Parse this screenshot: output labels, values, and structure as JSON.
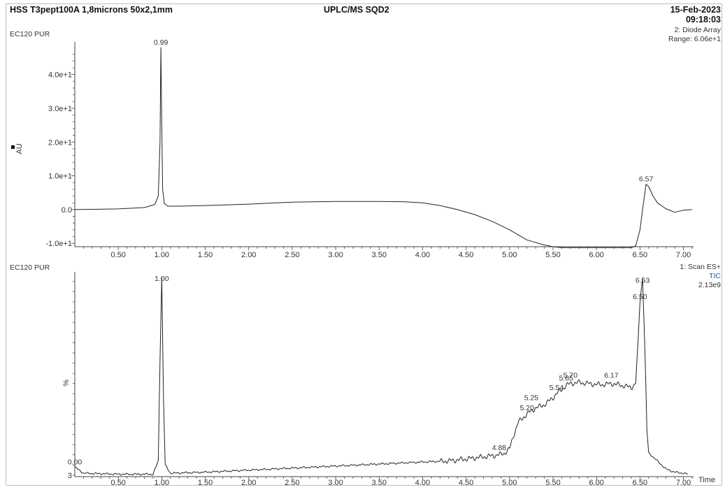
{
  "header": {
    "column": "HSS T3pept100A 1,8microns 50x2,1mm",
    "instrument": "UPLC/MS SQD2",
    "date": "15-Feb-2023",
    "time": "09:18:03"
  },
  "chart_data": [
    {
      "type": "line",
      "sample_label": "EC120 PUR",
      "detector": "2: Diode Array",
      "range_label": "Range: 6.06e+1",
      "ylabel": "AU",
      "xlim": [
        0.0,
        7.1
      ],
      "ylim": [
        -11.0,
        48.0
      ],
      "x_ticks": [
        "0.50",
        "1.00",
        "1.50",
        "2.00",
        "2.50",
        "3.00",
        "3.50",
        "4.00",
        "4.50",
        "5.00",
        "5.50",
        "6.00",
        "6.50",
        "7.00"
      ],
      "y_ticks": [
        {
          "value": 40,
          "label": "4.0e+1"
        },
        {
          "value": 30,
          "label": "3.0e+1"
        },
        {
          "value": 20,
          "label": "2.0e+1"
        },
        {
          "value": 10,
          "label": "1.0e+1"
        },
        {
          "value": 0,
          "label": "0.0"
        },
        {
          "value": -10,
          "label": "-1.0e+1"
        }
      ],
      "peak_labels": [
        {
          "x": 0.99,
          "y": 48.0,
          "label": "0.99"
        },
        {
          "x": 6.57,
          "y": 7.5,
          "label": "6.57"
        }
      ],
      "series": [
        {
          "x": [
            0.0,
            0.5,
            0.8,
            0.92,
            0.96,
            0.98,
            0.99,
            1.0,
            1.01,
            1.03,
            1.07,
            1.2,
            1.5,
            2.0,
            2.5,
            3.0,
            3.5,
            3.8,
            4.0,
            4.2,
            4.4,
            4.6,
            4.8,
            5.0,
            5.2,
            5.4,
            5.5,
            5.6,
            5.8,
            6.0,
            6.2,
            6.4,
            6.45,
            6.5,
            6.53,
            6.57,
            6.6,
            6.65,
            6.7,
            6.8,
            6.9,
            7.0,
            7.1
          ],
          "y": [
            0.0,
            0.2,
            0.6,
            1.5,
            4.0,
            20.0,
            48.0,
            25.0,
            6.0,
            1.8,
            1.0,
            1.0,
            1.2,
            1.6,
            2.2,
            2.4,
            2.4,
            2.3,
            2.0,
            1.2,
            0.0,
            -1.5,
            -3.5,
            -6.0,
            -9.0,
            -10.5,
            -11.0,
            -11.3,
            -11.3,
            -11.3,
            -11.3,
            -11.3,
            -10.8,
            -6.0,
            0.0,
            7.5,
            6.8,
            4.0,
            2.0,
            0.2,
            -0.8,
            -0.2,
            0.0
          ]
        }
      ]
    },
    {
      "type": "line",
      "sample_label": "EC120 PUR",
      "detector": "1: Scan ES+",
      "trace": "TIC",
      "range_label": "2.13e9",
      "ylabel": "%",
      "xlabel": "Time",
      "xlim": [
        0.0,
        7.1
      ],
      "ylim": [
        3,
        100
      ],
      "y_ticks": [
        {
          "value": 3,
          "label": "3"
        }
      ],
      "x_ticks": [
        "0.50",
        "1.00",
        "1.50",
        "2.00",
        "2.50",
        "3.00",
        "3.50",
        "4.00",
        "4.50",
        "5.00",
        "5.50",
        "6.00",
        "6.50",
        "7.00"
      ],
      "peak_labels": [
        {
          "x": 0.0,
          "y": 7.0,
          "label": "0.00"
        },
        {
          "x": 1.0,
          "y": 97.0,
          "label": "1.00"
        },
        {
          "x": 4.88,
          "y": 14.0,
          "label": "4.88"
        },
        {
          "x": 5.2,
          "y": 33.5,
          "label": "5.20"
        },
        {
          "x": 5.25,
          "y": 38.5,
          "label": "5.25"
        },
        {
          "x": 5.54,
          "y": 43.5,
          "label": "5.54"
        },
        {
          "x": 5.65,
          "y": 48.0,
          "label": "5.65"
        },
        {
          "x": 5.7,
          "y": 49.5,
          "label": "5.70"
        },
        {
          "x": 6.17,
          "y": 49.5,
          "label": "6.17"
        },
        {
          "x": 6.5,
          "y": 88.0,
          "label": "6.50"
        },
        {
          "x": 6.53,
          "y": 96.0,
          "label": "6.53"
        }
      ],
      "series": [
        {
          "x": [
            0.0,
            0.1,
            0.5,
            0.9,
            0.96,
            0.98,
            1.0,
            1.02,
            1.04,
            1.1,
            1.5,
            2.0,
            2.5,
            3.0,
            3.5,
            4.0,
            4.3,
            4.6,
            4.8,
            4.88,
            4.95,
            5.0,
            5.05,
            5.1,
            5.2,
            5.25,
            5.3,
            5.4,
            5.5,
            5.54,
            5.6,
            5.65,
            5.7,
            5.8,
            5.9,
            6.0,
            6.1,
            6.17,
            6.3,
            6.4,
            6.45,
            6.48,
            6.5,
            6.53,
            6.56,
            6.58,
            6.6,
            6.65,
            6.7,
            6.8,
            6.9,
            7.0,
            7.05
          ],
          "y": [
            7.0,
            4.0,
            3.5,
            3.5,
            10.0,
            60.0,
            100.0,
            40.0,
            8.0,
            4.0,
            4.5,
            5.5,
            6.5,
            7.5,
            8.5,
            9.5,
            10.0,
            11.5,
            12.5,
            13.0,
            14.0,
            16.0,
            23.0,
            29.0,
            33.0,
            34.5,
            36.0,
            37.5,
            41.0,
            43.0,
            45.0,
            47.0,
            48.0,
            48.5,
            48.0,
            47.5,
            47.5,
            48.0,
            47.0,
            46.0,
            48.0,
            70.0,
            88.0,
            100.0,
            60.0,
            25.0,
            14.0,
            12.0,
            10.0,
            6.0,
            4.5,
            4.0,
            3.5
          ]
        }
      ]
    }
  ]
}
